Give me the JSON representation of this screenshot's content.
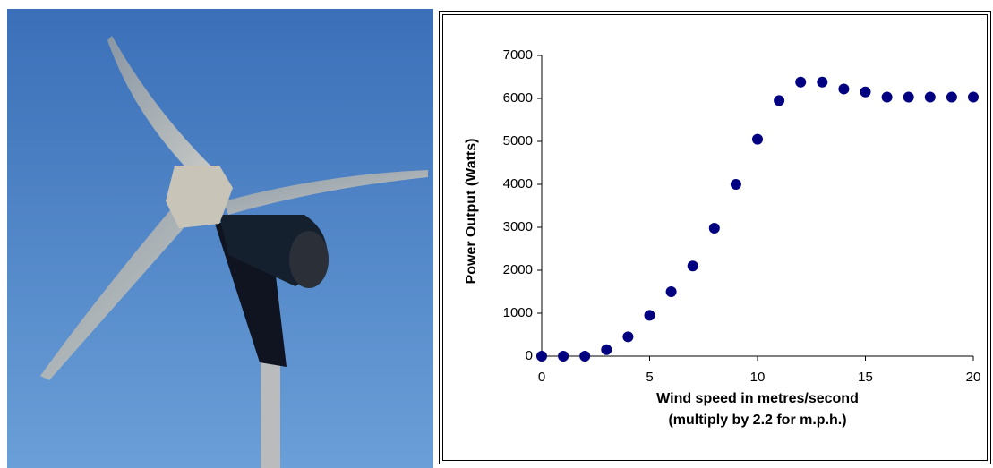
{
  "chart_data": {
    "type": "scatter",
    "x": [
      0,
      1,
      2,
      3,
      4,
      5,
      6,
      7,
      8,
      9,
      10,
      11,
      12,
      13,
      14,
      15,
      16,
      17,
      18,
      19,
      20
    ],
    "series": [
      {
        "color": "#000080",
        "values": [
          0,
          0,
          0,
          150,
          450,
          950,
          1500,
          2100,
          2980,
          4000,
          5050,
          5950,
          6380,
          6380,
          6220,
          6150,
          6030,
          6030,
          6030,
          6030,
          6030
        ]
      }
    ],
    "xlim": [
      0,
      20
    ],
    "xticks": [
      0,
      5,
      10,
      15,
      20
    ],
    "ylim": [
      0,
      7000
    ],
    "yticks": [
      0,
      1000,
      2000,
      3000,
      4000,
      5000,
      6000,
      7000
    ],
    "ylabel": "Power Output (Watts)",
    "xlabel": [
      "Wind speed in metres/second",
      "(multiply by 2.2 for m.p.h.)"
    ],
    "grid": false
  }
}
